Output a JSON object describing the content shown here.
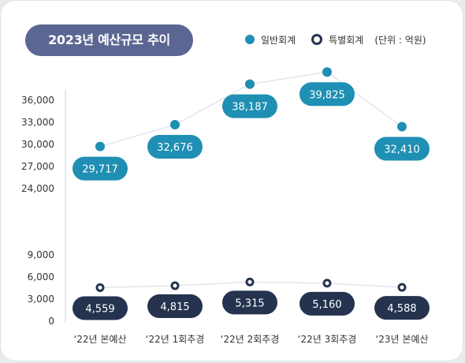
{
  "title": "2023년 예산규모 추이",
  "legend": {
    "general": "일반회계",
    "special": "특별회계",
    "unit": "(단위 : 억원)"
  },
  "colors": {
    "general": "#1f8fb3",
    "special": "#25334f",
    "title_bg": "#5b6692",
    "line": "#e3e5ee"
  },
  "chart_data": {
    "type": "line",
    "categories": [
      "‘22년 본예산",
      "‘22년 1회추경",
      "‘22년 2회추경",
      "‘22년 3회추경",
      "‘23년 본예산"
    ],
    "series": [
      {
        "name": "일반회계",
        "values": [
          29717,
          32676,
          38187,
          39825,
          32410
        ],
        "labels": [
          "29,717",
          "32,676",
          "38,187",
          "39,825",
          "32,410"
        ]
      },
      {
        "name": "특별회계",
        "values": [
          4559,
          4815,
          5315,
          5160,
          4588
        ],
        "labels": [
          "4,559",
          "4,815",
          "5,315",
          "5,160",
          "4,588"
        ]
      }
    ],
    "y_ticks": [
      "0",
      "3,000",
      "6,000",
      "9,000",
      "24,000",
      "27,000",
      "30,000",
      "33,000",
      "36,000"
    ],
    "axis_break": [
      9000,
      24000
    ],
    "legend_position": "top-right",
    "grid": false
  }
}
